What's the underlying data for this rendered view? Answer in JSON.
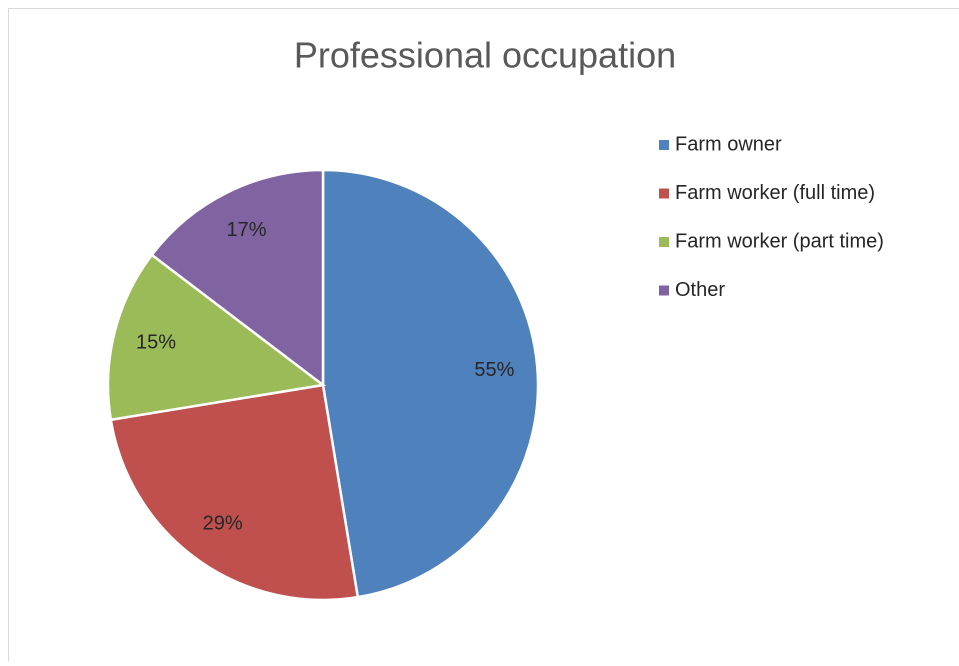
{
  "chart_data": {
    "type": "pie",
    "title": "Professional occupation",
    "categories": [
      "Farm owner",
      "Farm worker (full time)",
      "Farm worker (part time)",
      "Other"
    ],
    "values": [
      55,
      29,
      15,
      17
    ],
    "colors": [
      "#4f81bd",
      "#c0504d",
      "#9bbb59",
      "#8064a2"
    ],
    "legend": "right"
  }
}
